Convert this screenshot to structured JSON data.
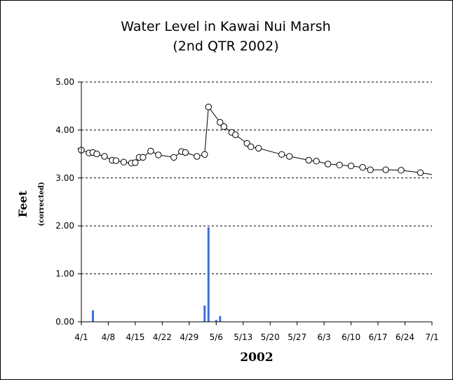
{
  "chart_data": {
    "type": "line",
    "title": "Water Level in Kawai Nui Marsh",
    "subtitle": "(2nd QTR 2002)",
    "xlabel": "2002",
    "ylabel": "Feet",
    "ylabel_sub": "(corrected)",
    "x_tick_labels": [
      "4/1",
      "4/8",
      "4/15",
      "4/22",
      "4/29",
      "5/6",
      "5/13",
      "5/20",
      "5/27",
      "6/3",
      "6/10",
      "6/17",
      "6/24",
      "7/1"
    ],
    "y_tick_labels": [
      "0.00",
      "1.00",
      "2.00",
      "3.00",
      "4.00",
      "5.00"
    ],
    "ylim": [
      0,
      5
    ],
    "xlim": [
      "2002-04-01",
      "2002-07-01"
    ],
    "grid": "horizontal dashed",
    "colors": {
      "line": "#000000",
      "marker_fill": "#ffffff",
      "bars": "#3a6fe0"
    },
    "series": [
      {
        "type": "line",
        "markers": "open circle",
        "points": [
          {
            "x": "2002-03-31",
            "y": 3.62,
            "marker": false
          },
          {
            "x": "2002-04-01",
            "y": 3.58
          },
          {
            "x": "2002-04-03",
            "y": 3.52
          },
          {
            "x": "2002-04-04",
            "y": 3.53
          },
          {
            "x": "2002-04-05",
            "y": 3.5
          },
          {
            "x": "2002-04-07",
            "y": 3.45
          },
          {
            "x": "2002-04-09",
            "y": 3.37
          },
          {
            "x": "2002-04-10",
            "y": 3.36
          },
          {
            "x": "2002-04-12",
            "y": 3.33
          },
          {
            "x": "2002-04-14",
            "y": 3.31
          },
          {
            "x": "2002-04-15",
            "y": 3.32
          },
          {
            "x": "2002-04-16",
            "y": 3.43
          },
          {
            "x": "2002-04-17",
            "y": 3.43
          },
          {
            "x": "2002-04-19",
            "y": 3.56
          },
          {
            "x": "2002-04-21",
            "y": 3.48
          },
          {
            "x": "2002-04-25",
            "y": 3.43
          },
          {
            "x": "2002-04-27",
            "y": 3.55
          },
          {
            "x": "2002-04-28",
            "y": 3.53
          },
          {
            "x": "2002-05-01",
            "y": 3.45
          },
          {
            "x": "2002-05-03",
            "y": 3.49
          },
          {
            "x": "2002-05-04",
            "y": 4.48
          },
          {
            "x": "2002-05-07",
            "y": 4.16
          },
          {
            "x": "2002-05-08",
            "y": 4.07
          },
          {
            "x": "2002-05-10",
            "y": 3.95
          },
          {
            "x": "2002-05-11",
            "y": 3.9
          },
          {
            "x": "2002-05-14",
            "y": 3.72
          },
          {
            "x": "2002-05-15",
            "y": 3.65
          },
          {
            "x": "2002-05-17",
            "y": 3.62
          },
          {
            "x": "2002-05-23",
            "y": 3.49
          },
          {
            "x": "2002-05-25",
            "y": 3.45
          },
          {
            "x": "2002-05-30",
            "y": 3.37
          },
          {
            "x": "2002-06-01",
            "y": 3.35
          },
          {
            "x": "2002-06-04",
            "y": 3.29
          },
          {
            "x": "2002-06-07",
            "y": 3.27
          },
          {
            "x": "2002-06-10",
            "y": 3.25
          },
          {
            "x": "2002-06-13",
            "y": 3.22
          },
          {
            "x": "2002-06-15",
            "y": 3.17
          },
          {
            "x": "2002-06-19",
            "y": 3.17
          },
          {
            "x": "2002-06-23",
            "y": 3.16
          },
          {
            "x": "2002-06-28",
            "y": 3.11
          },
          {
            "x": "2002-07-01",
            "y": 3.07,
            "marker": false
          }
        ]
      },
      {
        "type": "bar",
        "points": [
          {
            "x": "2002-04-04",
            "y": 0.24
          },
          {
            "x": "2002-05-03",
            "y": 0.34
          },
          {
            "x": "2002-05-04",
            "y": 1.97
          },
          {
            "x": "2002-05-06",
            "y": 0.04
          },
          {
            "x": "2002-05-07",
            "y": 0.12
          }
        ]
      }
    ]
  }
}
